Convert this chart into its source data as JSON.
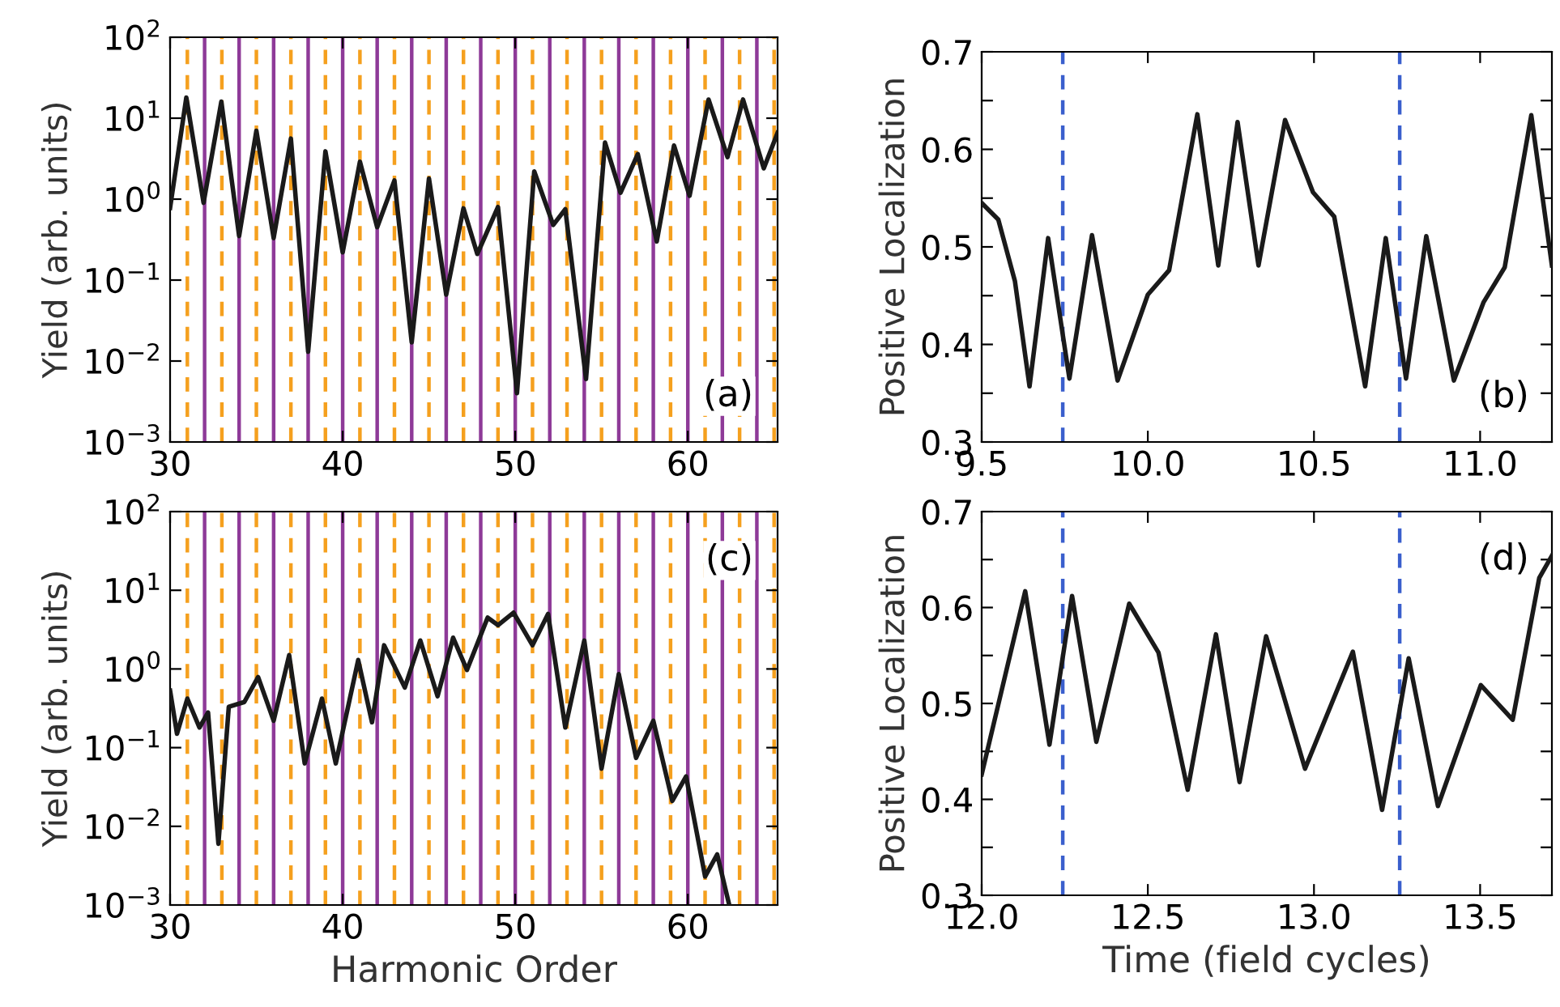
{
  "chart_data": [
    {
      "type": "line",
      "ylabel": "Yield (arb. units)",
      "log": "y",
      "xlim": [
        30,
        65.2
      ],
      "ylim": [
        0.001,
        100
      ],
      "xticks": [
        30,
        40,
        50,
        60
      ],
      "yticks": [
        {
          "value": 0.001,
          "label": "10$^{−3}$"
        },
        {
          "value": 0.01,
          "label": "10$^{−2}$"
        },
        {
          "value": 0.1,
          "label": "10$^{−1}$"
        },
        {
          "value": 1,
          "label": "10$^{0}$"
        },
        {
          "value": 10,
          "label": "10$^{1}$"
        },
        {
          "value": 100,
          "label": "10$^{2}$"
        }
      ],
      "annotations": [
        "(a)"
      ],
      "series": [
        {
          "color": "#1a1a1a",
          "x": [
            30,
            30.94,
            31.94,
            32.97,
            34,
            35,
            36,
            37,
            38,
            39,
            40,
            41,
            42,
            43,
            44,
            45,
            46,
            47,
            47.8,
            49,
            50.1,
            51.1,
            52.2,
            52.9,
            54.1,
            55.2,
            56.1,
            57.1,
            58.2,
            59.2,
            60.1,
            61.2,
            62.3,
            63.2,
            64.4,
            65.2
          ],
          "values": [
            0.78,
            18,
            0.9,
            16,
            0.35,
            7,
            0.33,
            5.6,
            0.013,
            3.9,
            0.22,
            2.9,
            0.45,
            1.7,
            0.017,
            1.8,
            0.066,
            0.77,
            0.21,
            0.8,
            0.004,
            2.2,
            0.48,
            0.75,
            0.006,
            5,
            1.2,
            3.6,
            0.3,
            4.6,
            1.1,
            17,
            3.3,
            17,
            2.4,
            6.6
          ]
        }
      ],
      "ref_lines": [
        {
          "axis": "x",
          "value": 31,
          "color": "#f5a01e",
          "line_style": "dashed"
        },
        {
          "axis": "x",
          "value": 33,
          "color": "#f5a01e",
          "line_style": "dashed"
        },
        {
          "axis": "x",
          "value": 35,
          "color": "#f5a01e",
          "line_style": "dashed"
        },
        {
          "axis": "x",
          "value": 37,
          "color": "#f5a01e",
          "line_style": "dashed"
        },
        {
          "axis": "x",
          "value": 39,
          "color": "#f5a01e",
          "line_style": "dashed"
        },
        {
          "axis": "x",
          "value": 41,
          "color": "#f5a01e",
          "line_style": "dashed"
        },
        {
          "axis": "x",
          "value": 43,
          "color": "#f5a01e",
          "line_style": "dashed"
        },
        {
          "axis": "x",
          "value": 45,
          "color": "#f5a01e",
          "line_style": "dashed"
        },
        {
          "axis": "x",
          "value": 47,
          "color": "#f5a01e",
          "line_style": "dashed"
        },
        {
          "axis": "x",
          "value": 49,
          "color": "#f5a01e",
          "line_style": "dashed"
        },
        {
          "axis": "x",
          "value": 51,
          "color": "#f5a01e",
          "line_style": "dashed"
        },
        {
          "axis": "x",
          "value": 53,
          "color": "#f5a01e",
          "line_style": "dashed"
        },
        {
          "axis": "x",
          "value": 55,
          "color": "#f5a01e",
          "line_style": "dashed"
        },
        {
          "axis": "x",
          "value": 57,
          "color": "#f5a01e",
          "line_style": "dashed"
        },
        {
          "axis": "x",
          "value": 59,
          "color": "#f5a01e",
          "line_style": "dashed"
        },
        {
          "axis": "x",
          "value": 61,
          "color": "#f5a01e",
          "line_style": "dashed"
        },
        {
          "axis": "x",
          "value": 63,
          "color": "#f5a01e",
          "line_style": "dashed"
        },
        {
          "axis": "x",
          "value": 65,
          "color": "#f5a01e",
          "line_style": "dashed"
        },
        {
          "axis": "x",
          "value": 32,
          "color": "#8e3a98",
          "line_style": "solid"
        },
        {
          "axis": "x",
          "value": 34,
          "color": "#8e3a98",
          "line_style": "solid"
        },
        {
          "axis": "x",
          "value": 36,
          "color": "#8e3a98",
          "line_style": "solid"
        },
        {
          "axis": "x",
          "value": 38,
          "color": "#8e3a98",
          "line_style": "solid"
        },
        {
          "axis": "x",
          "value": 40,
          "color": "#8e3a98",
          "line_style": "solid"
        },
        {
          "axis": "x",
          "value": 42,
          "color": "#8e3a98",
          "line_style": "solid"
        },
        {
          "axis": "x",
          "value": 44,
          "color": "#8e3a98",
          "line_style": "solid"
        },
        {
          "axis": "x",
          "value": 46,
          "color": "#8e3a98",
          "line_style": "solid"
        },
        {
          "axis": "x",
          "value": 48,
          "color": "#8e3a98",
          "line_style": "solid"
        },
        {
          "axis": "x",
          "value": 50,
          "color": "#8e3a98",
          "line_style": "solid"
        },
        {
          "axis": "x",
          "value": 52,
          "color": "#8e3a98",
          "line_style": "solid"
        },
        {
          "axis": "x",
          "value": 54,
          "color": "#8e3a98",
          "line_style": "solid"
        },
        {
          "axis": "x",
          "value": 56,
          "color": "#8e3a98",
          "line_style": "solid"
        },
        {
          "axis": "x",
          "value": 58,
          "color": "#8e3a98",
          "line_style": "solid"
        },
        {
          "axis": "x",
          "value": 60,
          "color": "#8e3a98",
          "line_style": "solid"
        },
        {
          "axis": "x",
          "value": 62,
          "color": "#8e3a98",
          "line_style": "solid"
        },
        {
          "axis": "x",
          "value": 64,
          "color": "#8e3a98",
          "line_style": "solid"
        }
      ]
    },
    {
      "type": "line",
      "ylabel": "Positive Localization",
      "xlim": [
        9.5,
        11.216
      ],
      "ylim": [
        0.3,
        0.7
      ],
      "xticks": [
        9.5,
        {
          "value": 10,
          "label": "10.0"
        },
        10.5,
        {
          "value": 11,
          "label": "11.0"
        }
      ],
      "yticks": [
        0.3,
        {
          "value": 0.35,
          "label": null
        },
        0.4,
        {
          "value": 0.45,
          "label": null
        },
        0.5,
        {
          "value": 0.55,
          "label": null
        },
        0.6,
        {
          "value": 0.65,
          "label": null
        },
        0.7
      ],
      "annotations": [
        "(b)"
      ],
      "series": [
        {
          "color": "#1a1a1a",
          "x": [
            9.5,
            9.55,
            9.6,
            9.644,
            9.7,
            9.764,
            9.832,
            9.909,
            10.0,
            10.064,
            10.149,
            10.212,
            10.27,
            10.333,
            10.413,
            10.497,
            10.561,
            10.654,
            10.716,
            10.777,
            10.838,
            10.921,
            11.01,
            11.074,
            11.154,
            11.216
          ],
          "values": [
            0.545,
            0.528,
            0.465,
            0.357,
            0.509,
            0.365,
            0.512,
            0.363,
            0.451,
            0.476,
            0.636,
            0.481,
            0.628,
            0.481,
            0.63,
            0.556,
            0.531,
            0.357,
            0.509,
            0.365,
            0.511,
            0.363,
            0.443,
            0.479,
            0.635,
            0.481
          ]
        }
      ],
      "ref_lines": [
        {
          "axis": "x",
          "value": 9.744,
          "color": "#3a5fcd",
          "line_style": "dashed"
        },
        {
          "axis": "x",
          "value": 10.758,
          "color": "#3a5fcd",
          "line_style": "dashed"
        }
      ]
    },
    {
      "type": "line",
      "xlabel": "Harmonic Order",
      "ylabel": "Yield (arb. units)",
      "log": "y",
      "xlim": [
        30,
        65.2
      ],
      "ylim": [
        0.001,
        100
      ],
      "xticks": [
        30,
        40,
        50,
        60
      ],
      "yticks": [
        {
          "value": 0.001,
          "label": "10$^{−3}$"
        },
        {
          "value": 0.01,
          "label": "10$^{−2}$"
        },
        {
          "value": 0.1,
          "label": "10$^{−1}$"
        },
        {
          "value": 1,
          "label": "10$^{0}$"
        },
        {
          "value": 10,
          "label": "10$^{1}$"
        },
        {
          "value": 100,
          "label": "10$^{2}$"
        }
      ],
      "annotations": [
        "(c)"
      ],
      "series": [
        {
          "color": "#1a1a1a",
          "x": [
            30,
            30.4,
            31,
            31.7,
            32.2,
            32.8,
            33.4,
            34.3,
            35.1,
            36,
            36.9,
            37.8,
            38.8,
            39.6,
            40.9,
            41.7,
            42.4,
            43.6,
            44.5,
            45.5,
            46.4,
            47.2,
            48.4,
            49,
            49.9,
            51,
            51.9,
            52.9,
            54,
            55,
            56,
            57,
            58,
            59.1,
            59.9,
            61,
            61.7,
            62.4
          ],
          "values": [
            0.53,
            0.15,
            0.42,
            0.18,
            0.28,
            0.006,
            0.33,
            0.38,
            0.79,
            0.22,
            1.5,
            0.063,
            0.42,
            0.063,
            1.3,
            0.21,
            2.0,
            0.58,
            2.3,
            0.45,
            2.5,
            0.97,
            4.5,
            3.6,
            5.2,
            2.0,
            5,
            0.18,
            2.3,
            0.054,
            0.86,
            0.074,
            0.22,
            0.021,
            0.043,
            0.0023,
            0.0044,
            0.001
          ]
        }
      ],
      "ref_lines": [
        {
          "axis": "x",
          "value": 31,
          "color": "#f5a01e",
          "line_style": "dashed"
        },
        {
          "axis": "x",
          "value": 33,
          "color": "#f5a01e",
          "line_style": "dashed"
        },
        {
          "axis": "x",
          "value": 35,
          "color": "#f5a01e",
          "line_style": "dashed"
        },
        {
          "axis": "x",
          "value": 37,
          "color": "#f5a01e",
          "line_style": "dashed"
        },
        {
          "axis": "x",
          "value": 39,
          "color": "#f5a01e",
          "line_style": "dashed"
        },
        {
          "axis": "x",
          "value": 41,
          "color": "#f5a01e",
          "line_style": "dashed"
        },
        {
          "axis": "x",
          "value": 43,
          "color": "#f5a01e",
          "line_style": "dashed"
        },
        {
          "axis": "x",
          "value": 45,
          "color": "#f5a01e",
          "line_style": "dashed"
        },
        {
          "axis": "x",
          "value": 47,
          "color": "#f5a01e",
          "line_style": "dashed"
        },
        {
          "axis": "x",
          "value": 49,
          "color": "#f5a01e",
          "line_style": "dashed"
        },
        {
          "axis": "x",
          "value": 51,
          "color": "#f5a01e",
          "line_style": "dashed"
        },
        {
          "axis": "x",
          "value": 53,
          "color": "#f5a01e",
          "line_style": "dashed"
        },
        {
          "axis": "x",
          "value": 55,
          "color": "#f5a01e",
          "line_style": "dashed"
        },
        {
          "axis": "x",
          "value": 57,
          "color": "#f5a01e",
          "line_style": "dashed"
        },
        {
          "axis": "x",
          "value": 59,
          "color": "#f5a01e",
          "line_style": "dashed"
        },
        {
          "axis": "x",
          "value": 61,
          "color": "#f5a01e",
          "line_style": "dashed"
        },
        {
          "axis": "x",
          "value": 63,
          "color": "#f5a01e",
          "line_style": "dashed"
        },
        {
          "axis": "x",
          "value": 65,
          "color": "#f5a01e",
          "line_style": "dashed"
        },
        {
          "axis": "x",
          "value": 32,
          "color": "#8e3a98",
          "line_style": "solid"
        },
        {
          "axis": "x",
          "value": 34,
          "color": "#8e3a98",
          "line_style": "solid"
        },
        {
          "axis": "x",
          "value": 36,
          "color": "#8e3a98",
          "line_style": "solid"
        },
        {
          "axis": "x",
          "value": 38,
          "color": "#8e3a98",
          "line_style": "solid"
        },
        {
          "axis": "x",
          "value": 40,
          "color": "#8e3a98",
          "line_style": "solid"
        },
        {
          "axis": "x",
          "value": 42,
          "color": "#8e3a98",
          "line_style": "solid"
        },
        {
          "axis": "x",
          "value": 44,
          "color": "#8e3a98",
          "line_style": "solid"
        },
        {
          "axis": "x",
          "value": 46,
          "color": "#8e3a98",
          "line_style": "solid"
        },
        {
          "axis": "x",
          "value": 48,
          "color": "#8e3a98",
          "line_style": "solid"
        },
        {
          "axis": "x",
          "value": 50,
          "color": "#8e3a98",
          "line_style": "solid"
        },
        {
          "axis": "x",
          "value": 52,
          "color": "#8e3a98",
          "line_style": "solid"
        },
        {
          "axis": "x",
          "value": 54,
          "color": "#8e3a98",
          "line_style": "solid"
        },
        {
          "axis": "x",
          "value": 56,
          "color": "#8e3a98",
          "line_style": "solid"
        },
        {
          "axis": "x",
          "value": 58,
          "color": "#8e3a98",
          "line_style": "solid"
        },
        {
          "axis": "x",
          "value": 60,
          "color": "#8e3a98",
          "line_style": "solid"
        },
        {
          "axis": "x",
          "value": 62,
          "color": "#8e3a98",
          "line_style": "solid"
        },
        {
          "axis": "x",
          "value": 64,
          "color": "#8e3a98",
          "line_style": "solid"
        }
      ]
    },
    {
      "type": "line",
      "xlabel": "Time (field cycles)",
      "ylabel": "Positive Localization",
      "xlim": [
        12.0,
        13.716
      ],
      "ylim": [
        0.3,
        0.7
      ],
      "xticks": [
        {
          "value": 12,
          "label": "12.0"
        },
        12.5,
        {
          "value": 13,
          "label": "13.0"
        },
        13.5
      ],
      "yticks": [
        0.3,
        {
          "value": 0.35,
          "label": null
        },
        0.4,
        {
          "value": 0.45,
          "label": null
        },
        0.5,
        {
          "value": 0.55,
          "label": null
        },
        0.6,
        {
          "value": 0.65,
          "label": null
        },
        0.7
      ],
      "annotations": [
        "(d)"
      ],
      "series": [
        {
          "color": "#1a1a1a",
          "x": [
            12.0,
            12.131,
            12.204,
            12.272,
            12.345,
            12.444,
            12.532,
            12.62,
            12.705,
            12.776,
            12.856,
            12.973,
            13.117,
            13.205,
            13.285,
            13.373,
            13.502,
            13.598,
            13.678,
            13.716
          ],
          "values": [
            0.426,
            0.617,
            0.457,
            0.612,
            0.46,
            0.604,
            0.553,
            0.41,
            0.572,
            0.418,
            0.57,
            0.432,
            0.554,
            0.389,
            0.547,
            0.393,
            0.519,
            0.483,
            0.631,
            0.654
          ]
        }
      ],
      "ref_lines": [
        {
          "axis": "x",
          "value": 12.244,
          "color": "#3a5fcd",
          "line_style": "dashed"
        },
        {
          "axis": "x",
          "value": 13.258,
          "color": "#3a5fcd",
          "line_style": "dashed"
        }
      ]
    }
  ]
}
